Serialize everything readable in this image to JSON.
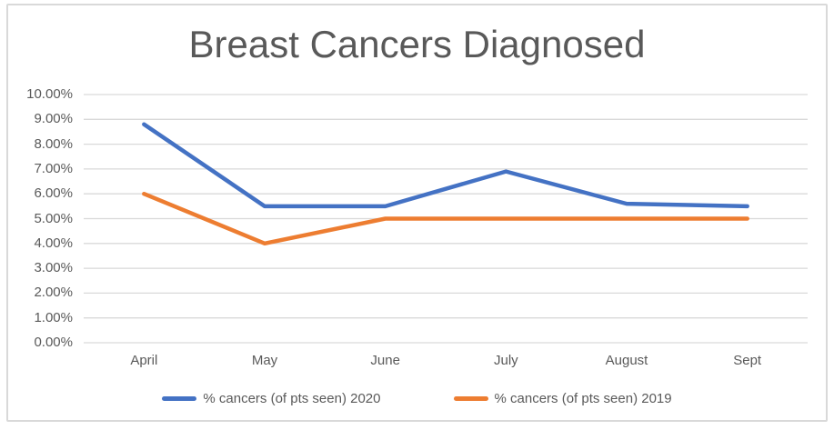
{
  "chart_data": {
    "type": "line",
    "title": "Breast Cancers Diagnosed",
    "categories": [
      "April",
      "May",
      "June",
      "July",
      "August",
      "Sept"
    ],
    "series": [
      {
        "name": "% cancers (of pts seen) 2020",
        "color": "#4472C4",
        "values": [
          8.8,
          5.5,
          5.5,
          6.9,
          5.6,
          5.5
        ]
      },
      {
        "name": "% cancers (of pts seen) 2019",
        "color": "#ED7D31",
        "values": [
          6.0,
          4.0,
          5.0,
          5.0,
          5.0,
          5.0
        ]
      }
    ],
    "xlabel": "",
    "ylabel": "",
    "y_axis": {
      "min": 0,
      "max": 10,
      "step": 1,
      "unit": "%",
      "ticks": [
        "10.00%",
        "9.00%",
        "8.00%",
        "7.00%",
        "6.00%",
        "5.00%",
        "4.00%",
        "3.00%",
        "2.00%",
        "1.00%",
        "0.00%"
      ]
    },
    "ylim": [
      0,
      10
    ],
    "grid": true,
    "legend_position": "bottom",
    "colors": {
      "gridline": "#D9D9D9",
      "axis_text": "#595959",
      "title_text": "#595959",
      "chart_border": "#D9D9D9",
      "background": "#FFFFFF"
    }
  }
}
